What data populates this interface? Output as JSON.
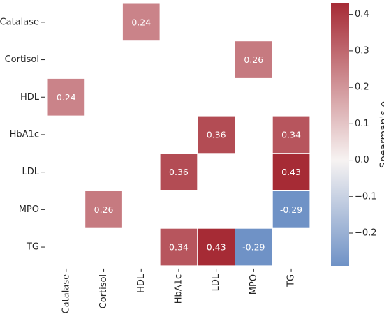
{
  "chart_data": {
    "type": "heatmap",
    "title": "",
    "xlabel": "",
    "ylabel": "",
    "rows": [
      "Catalase",
      "Cortisol",
      "HDL",
      "HbA1c",
      "LDL",
      "MPO",
      "TG"
    ],
    "columns": [
      "Catalase",
      "Cortisol",
      "HDL",
      "HbA1c",
      "LDL",
      "MPO",
      "TG"
    ],
    "cells": [
      {
        "row": "Catalase",
        "col": "HDL",
        "value": 0.24
      },
      {
        "row": "Cortisol",
        "col": "MPO",
        "value": 0.26
      },
      {
        "row": "HDL",
        "col": "Catalase",
        "value": 0.24
      },
      {
        "row": "HbA1c",
        "col": "LDL",
        "value": 0.36
      },
      {
        "row": "HbA1c",
        "col": "TG",
        "value": 0.34
      },
      {
        "row": "LDL",
        "col": "HbA1c",
        "value": 0.36
      },
      {
        "row": "LDL",
        "col": "TG",
        "value": 0.43
      },
      {
        "row": "MPO",
        "col": "Cortisol",
        "value": 0.26
      },
      {
        "row": "MPO",
        "col": "TG",
        "value": -0.29
      },
      {
        "row": "TG",
        "col": "HbA1c",
        "value": 0.34
      },
      {
        "row": "TG",
        "col": "LDL",
        "value": 0.43
      },
      {
        "row": "TG",
        "col": "MPO",
        "value": -0.29
      }
    ],
    "colorbar": {
      "label": "Spearman's ρ",
      "vmin": -0.29,
      "vmax": 0.43,
      "ticks": [
        -0.2,
        -0.1,
        0.0,
        0.1,
        0.2,
        0.3,
        0.4
      ],
      "tick_labels": [
        "−0.2",
        "−0.1",
        "0.0",
        "0.1",
        "0.2",
        "0.3",
        "0.4"
      ],
      "colormap": "diverging blue-white-red (vlag)",
      "color_low": "#6f92c6",
      "color_mid": "#f7f3f2",
      "color_high": "#a62b35"
    }
  }
}
